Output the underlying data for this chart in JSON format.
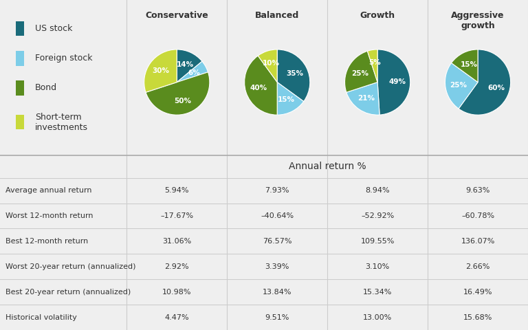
{
  "colors": {
    "us_stock": "#1a6b7a",
    "foreign_stock": "#7dcde8",
    "bond": "#5a8c1e",
    "short_term": "#c8d93a"
  },
  "pie_titles": [
    "Conservative",
    "Balanced",
    "Growth",
    "Aggressive\ngrowth"
  ],
  "pie_data": [
    [
      14,
      6,
      50,
      30
    ],
    [
      35,
      15,
      40,
      10
    ],
    [
      49,
      21,
      25,
      5
    ],
    [
      60,
      25,
      15,
      0
    ]
  ],
  "pie_labels": [
    [
      "14%",
      "6%",
      "50%",
      "30%"
    ],
    [
      "35%",
      "15%",
      "40%",
      "10%"
    ],
    [
      "49%",
      "21%",
      "25%",
      "5%"
    ],
    [
      "60%",
      "25%",
      "15%",
      ""
    ]
  ],
  "table_header": "Annual return %",
  "row_labels": [
    "Average annual return",
    "Worst 12-month return",
    "Best 12-month return",
    "Worst 20-year return (annualized)",
    "Best 20-year return (annualized)",
    "Historical volatility"
  ],
  "table_data": [
    [
      "5.94%",
      "7.93%",
      "8.94%",
      "9.63%"
    ],
    [
      "–17.67%",
      "–40.64%",
      "–52.92%",
      "–60.78%"
    ],
    [
      "31.06%",
      "76.57%",
      "109.55%",
      "136.07%"
    ],
    [
      "2.92%",
      "3.39%",
      "3.10%",
      "2.66%"
    ],
    [
      "10.98%",
      "13.84%",
      "15.34%",
      "16.49%"
    ],
    [
      "4.47%",
      "9.51%",
      "13.00%",
      "15.68%"
    ]
  ],
  "legend_items": [
    "US stock",
    "Foreign stock",
    "Bond",
    "Short-term\ninvestments"
  ],
  "bg_color": "#efefef",
  "header_bg": "#b8b8b8",
  "row_colors": [
    "#ffffff",
    "#ebebeb"
  ],
  "table_line_color": "#cccccc"
}
